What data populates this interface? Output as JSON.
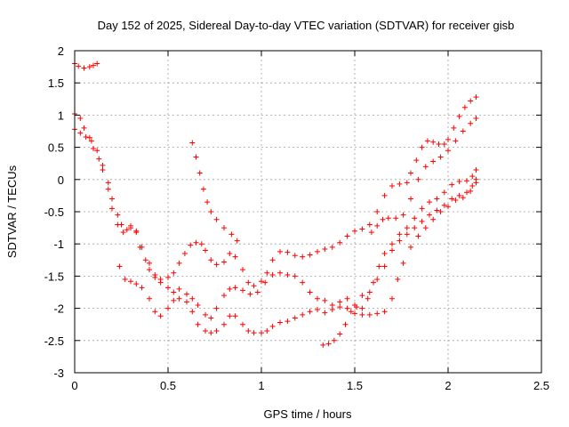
{
  "chart_data": {
    "type": "scatter",
    "title": "Day 152 of 2025, Sidereal Day-to-day VTEC variation (SDTVAR) for receiver gisb",
    "xlabel": "GPS time / hours",
    "ylabel": "SDTVAR / TECUs",
    "xlim": [
      0,
      2.5
    ],
    "ylim": [
      -3,
      2
    ],
    "xticks": [
      0,
      0.5,
      1,
      1.5,
      2,
      2.5
    ],
    "xtick_labels": [
      "0",
      "0.5",
      "1",
      "1.5",
      "2",
      "2.5"
    ],
    "yticks": [
      -3,
      -2.5,
      -2,
      -1.5,
      -1,
      -0.5,
      0,
      0.5,
      1,
      1.5,
      2
    ],
    "ytick_labels": [
      "-3",
      "-2.5",
      "-2",
      "-1.5",
      "-1",
      "-0.5",
      "0",
      "0.5",
      "1",
      "1.5",
      "2"
    ],
    "grid": true,
    "marker": "+",
    "marker_color": "#ff0000",
    "series": [
      {
        "points": [
          [
            0,
            1.8
          ],
          [
            0.02,
            1.76
          ],
          [
            0.05,
            1.73
          ],
          [
            0.08,
            1.75
          ],
          [
            0.1,
            1.77
          ],
          [
            0.12,
            1.8
          ]
        ]
      },
      {
        "points": [
          [
            0,
            1.02
          ],
          [
            0.03,
            0.95
          ],
          [
            0.05,
            0.8
          ],
          [
            0.08,
            0.65
          ],
          [
            0.1,
            0.48
          ],
          [
            0.13,
            0.32
          ],
          [
            0.15,
            0.15
          ],
          [
            0.18,
            -0.05
          ],
          [
            0.2,
            -0.3
          ],
          [
            0.23,
            -0.55
          ],
          [
            0.25,
            -0.7
          ],
          [
            0.28,
            -0.78
          ],
          [
            0.3,
            -0.75
          ],
          [
            0.33,
            -0.82
          ],
          [
            0.35,
            -1.05
          ],
          [
            0.38,
            -1.25
          ],
          [
            0.4,
            -1.4
          ],
          [
            0.43,
            -1.52
          ],
          [
            0.46,
            -1.55
          ],
          [
            0.5,
            -1.52
          ],
          [
            0.53,
            -1.45
          ],
          [
            0.56,
            -1.3
          ],
          [
            0.59,
            -1.15
          ],
          [
            0.62,
            -1.02
          ],
          [
            0.65,
            -0.98
          ],
          [
            0.68,
            -1.0
          ],
          [
            0.7,
            -1.1
          ],
          [
            0.73,
            -1.25
          ],
          [
            0.76,
            -1.32
          ],
          [
            0.8,
            -1.28
          ],
          [
            0.83,
            -1.15
          ],
          [
            0.86,
            -1.2
          ],
          [
            0.9,
            -1.4
          ],
          [
            0.93,
            -1.6
          ],
          [
            0.96,
            -1.65
          ],
          [
            1.0,
            -1.58
          ],
          [
            1.03,
            -1.45
          ],
          [
            1.06,
            -1.25
          ],
          [
            1.1,
            -1.12
          ],
          [
            1.14,
            -1.13
          ],
          [
            1.18,
            -1.18
          ],
          [
            1.22,
            -1.2
          ],
          [
            1.26,
            -1.17
          ],
          [
            1.3,
            -1.12
          ],
          [
            1.34,
            -1.08
          ],
          [
            1.38,
            -1.05
          ],
          [
            1.42,
            -0.98
          ],
          [
            1.46,
            -0.88
          ],
          [
            1.5,
            -0.8
          ],
          [
            1.54,
            -0.77
          ],
          [
            1.58,
            -0.7
          ],
          [
            1.62,
            -0.5
          ],
          [
            1.66,
            -0.25
          ],
          [
            1.7,
            -0.1
          ],
          [
            1.74,
            -0.07
          ],
          [
            1.78,
            -0.05
          ],
          [
            1.8,
            0.1
          ],
          [
            1.83,
            0.3
          ],
          [
            1.86,
            0.5
          ],
          [
            1.89,
            0.6
          ],
          [
            1.92,
            0.58
          ],
          [
            1.95,
            0.55
          ],
          [
            1.98,
            0.55
          ],
          [
            2.0,
            0.62
          ],
          [
            2.03,
            0.8
          ],
          [
            2.06,
            0.98
          ],
          [
            2.09,
            1.12
          ],
          [
            2.12,
            1.22
          ],
          [
            2.15,
            1.28
          ]
        ]
      },
      {
        "points": [
          [
            0,
            0.78
          ],
          [
            0.03,
            0.72
          ],
          [
            0.06,
            0.66
          ],
          [
            0.09,
            0.6
          ],
          [
            0.12,
            0.45
          ],
          [
            0.15,
            0.22
          ],
          [
            0.18,
            -0.15
          ],
          [
            0.2,
            -0.45
          ],
          [
            0.23,
            -0.7
          ],
          [
            0.26,
            -0.82
          ],
          [
            0.3,
            -0.72
          ],
          [
            0.33,
            -0.8
          ],
          [
            0.36,
            -1.05
          ],
          [
            0.4,
            -1.3
          ],
          [
            0.43,
            -1.48
          ],
          [
            0.46,
            -1.6
          ],
          [
            0.5,
            -1.68
          ],
          [
            0.53,
            -1.75
          ],
          [
            0.56,
            -1.7
          ],
          [
            0.6,
            -1.78
          ],
          [
            0.63,
            -1.85
          ],
          [
            0.66,
            -1.95
          ],
          [
            0.7,
            -2.1
          ],
          [
            0.73,
            -2.15
          ],
          [
            0.76,
            -2.0
          ],
          [
            0.8,
            -1.8
          ],
          [
            0.83,
            -1.7
          ],
          [
            0.86,
            -1.68
          ],
          [
            0.9,
            -1.72
          ],
          [
            0.94,
            -1.78
          ],
          [
            0.98,
            -1.75
          ],
          [
            1.02,
            -1.6
          ],
          [
            1.06,
            -1.48
          ],
          [
            1.1,
            -1.45
          ],
          [
            1.14,
            -1.48
          ],
          [
            1.18,
            -1.5
          ],
          [
            1.22,
            -1.6
          ],
          [
            1.26,
            -1.75
          ],
          [
            1.3,
            -1.85
          ],
          [
            1.34,
            -1.88
          ],
          [
            1.38,
            -1.95
          ],
          [
            1.42,
            -1.9
          ],
          [
            1.46,
            -1.85
          ],
          [
            1.5,
            -1.95
          ],
          [
            1.54,
            -1.8
          ],
          [
            1.58,
            -1.75
          ],
          [
            1.62,
            -1.55
          ],
          [
            1.66,
            -1.35
          ],
          [
            1.7,
            -1.1
          ],
          [
            1.74,
            -0.95
          ],
          [
            1.78,
            -0.85
          ],
          [
            1.82,
            -0.75
          ],
          [
            1.86,
            -0.65
          ],
          [
            1.9,
            -0.55
          ],
          [
            1.94,
            -0.48
          ],
          [
            1.98,
            -0.4
          ],
          [
            2.02,
            -0.3
          ],
          [
            2.06,
            -0.25
          ],
          [
            2.1,
            -0.2
          ],
          [
            2.13,
            -0.1
          ],
          [
            2.15,
            0.0
          ]
        ]
      },
      {
        "points": [
          [
            0.24,
            -1.35
          ],
          [
            0.27,
            -1.55
          ],
          [
            0.3,
            -1.58
          ],
          [
            0.33,
            -1.62
          ],
          [
            0.36,
            -1.68
          ],
          [
            0.4,
            -1.85
          ],
          [
            0.43,
            -2.05
          ],
          [
            0.46,
            -2.12
          ],
          [
            0.5,
            -2.0
          ],
          [
            0.53,
            -1.88
          ],
          [
            0.56,
            -1.85
          ],
          [
            0.6,
            -1.9
          ],
          [
            0.63,
            -2.05
          ],
          [
            0.66,
            -2.25
          ],
          [
            0.7,
            -2.35
          ],
          [
            0.73,
            -2.38
          ],
          [
            0.76,
            -2.35
          ],
          [
            0.8,
            -2.25
          ],
          [
            0.83,
            -2.12
          ],
          [
            0.86,
            -2.12
          ],
          [
            0.9,
            -2.25
          ],
          [
            0.93,
            -2.35
          ],
          [
            0.96,
            -2.38
          ],
          [
            1.0,
            -2.38
          ],
          [
            1.03,
            -2.35
          ],
          [
            1.06,
            -2.28
          ],
          [
            1.1,
            -2.22
          ],
          [
            1.14,
            -2.2
          ],
          [
            1.18,
            -2.15
          ],
          [
            1.22,
            -2.1
          ],
          [
            1.26,
            -2.05
          ],
          [
            1.3,
            -2.02
          ],
          [
            1.34,
            -2.07
          ],
          [
            1.38,
            -2.02
          ],
          [
            1.42,
            -1.98
          ],
          [
            1.46,
            -2.0
          ],
          [
            1.5,
            -2.08
          ],
          [
            1.54,
            -2.1
          ],
          [
            1.58,
            -2.1
          ],
          [
            1.62,
            -2.08
          ],
          [
            1.66,
            -2.05
          ],
          [
            1.7,
            -1.85
          ],
          [
            1.73,
            -1.55
          ],
          [
            1.76,
            -1.3
          ],
          [
            1.8,
            -1.05
          ],
          [
            1.84,
            -0.88
          ],
          [
            1.88,
            -0.75
          ],
          [
            1.92,
            -0.62
          ],
          [
            1.96,
            -0.5
          ],
          [
            2.0,
            -0.42
          ],
          [
            2.04,
            -0.32
          ],
          [
            2.08,
            -0.28
          ],
          [
            2.12,
            -0.18
          ],
          [
            2.15,
            -0.05
          ]
        ]
      },
      {
        "points": [
          [
            0.63,
            0.57
          ],
          [
            0.65,
            0.35
          ],
          [
            0.67,
            0.1
          ],
          [
            0.69,
            -0.15
          ],
          [
            0.71,
            -0.35
          ],
          [
            0.73,
            -0.5
          ],
          [
            0.76,
            -0.62
          ],
          [
            0.8,
            -0.75
          ],
          [
            0.84,
            -0.85
          ],
          [
            0.87,
            -0.95
          ]
        ]
      },
      {
        "points": [
          [
            1.33,
            -2.57
          ],
          [
            1.36,
            -2.55
          ],
          [
            1.39,
            -2.5
          ],
          [
            1.42,
            -2.4
          ],
          [
            1.45,
            -2.25
          ],
          [
            1.48,
            -2.05
          ],
          [
            1.51,
            -1.98
          ],
          [
            1.54,
            -2.0
          ],
          [
            1.57,
            -1.85
          ],
          [
            1.6,
            -1.6
          ],
          [
            1.63,
            -1.35
          ],
          [
            1.66,
            -1.15
          ],
          [
            1.7,
            -1.0
          ],
          [
            1.74,
            -0.85
          ],
          [
            1.78,
            -0.75
          ],
          [
            1.82,
            -0.6
          ],
          [
            1.86,
            -0.45
          ],
          [
            1.9,
            -0.35
          ],
          [
            1.94,
            -0.3
          ],
          [
            1.98,
            -0.2
          ],
          [
            2.02,
            -0.08
          ],
          [
            2.06,
            -0.03
          ],
          [
            2.1,
            -0.02
          ],
          [
            2.13,
            0.05
          ],
          [
            2.15,
            0.15
          ]
        ]
      },
      {
        "points": [
          [
            1.59,
            -0.82
          ],
          [
            1.62,
            -0.72
          ],
          [
            1.65,
            -0.62
          ],
          [
            1.68,
            -0.6
          ],
          [
            1.72,
            -0.6
          ],
          [
            1.76,
            -0.55
          ],
          [
            1.8,
            -0.3
          ],
          [
            1.84,
            0.0
          ],
          [
            1.88,
            0.2
          ],
          [
            1.92,
            0.28
          ],
          [
            1.96,
            0.35
          ],
          [
            2.0,
            0.45
          ],
          [
            2.04,
            0.6
          ],
          [
            2.08,
            0.75
          ],
          [
            2.12,
            0.87
          ],
          [
            2.15,
            0.95
          ]
        ]
      }
    ]
  }
}
